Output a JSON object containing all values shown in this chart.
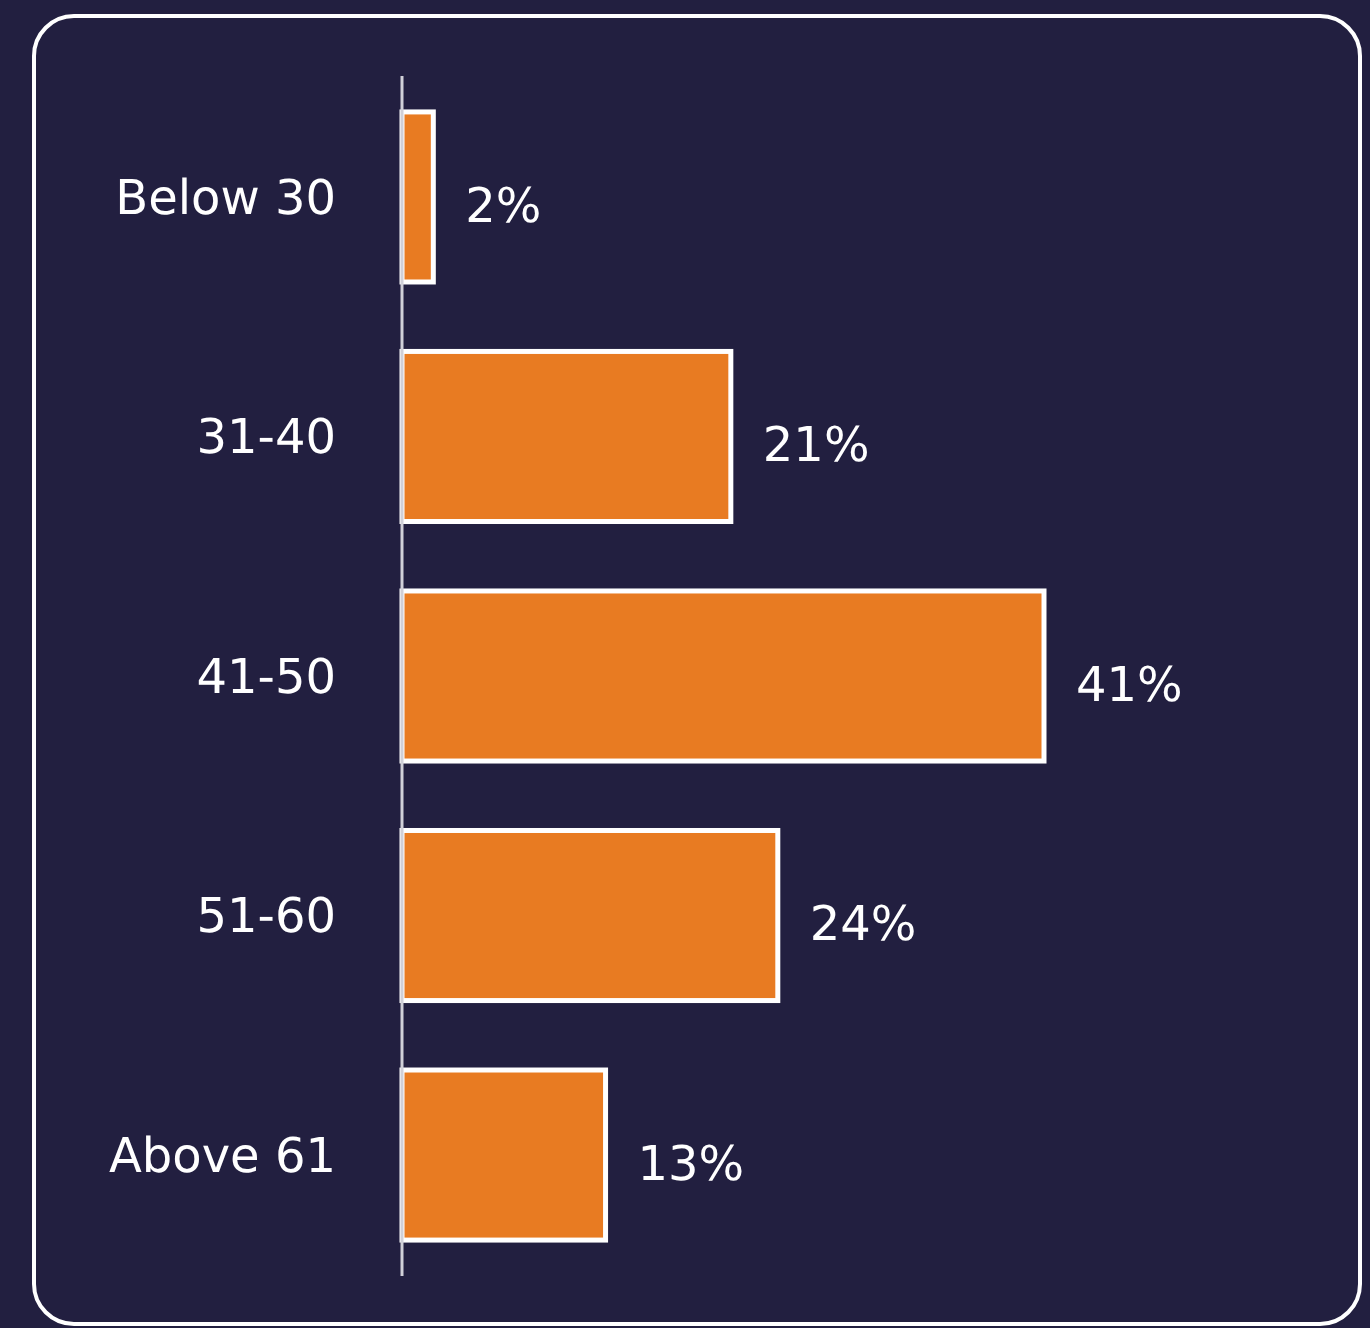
{
  "chart_data": {
    "type": "bar",
    "orientation": "horizontal",
    "categories": [
      "Below 30",
      "31-40",
      "41-50",
      "51-60",
      "Above 61"
    ],
    "values": [
      2,
      21,
      41,
      24,
      13
    ],
    "value_labels": [
      "2%",
      "21%",
      "41%",
      "24%",
      "13%"
    ],
    "color": "#e87b22"
  }
}
